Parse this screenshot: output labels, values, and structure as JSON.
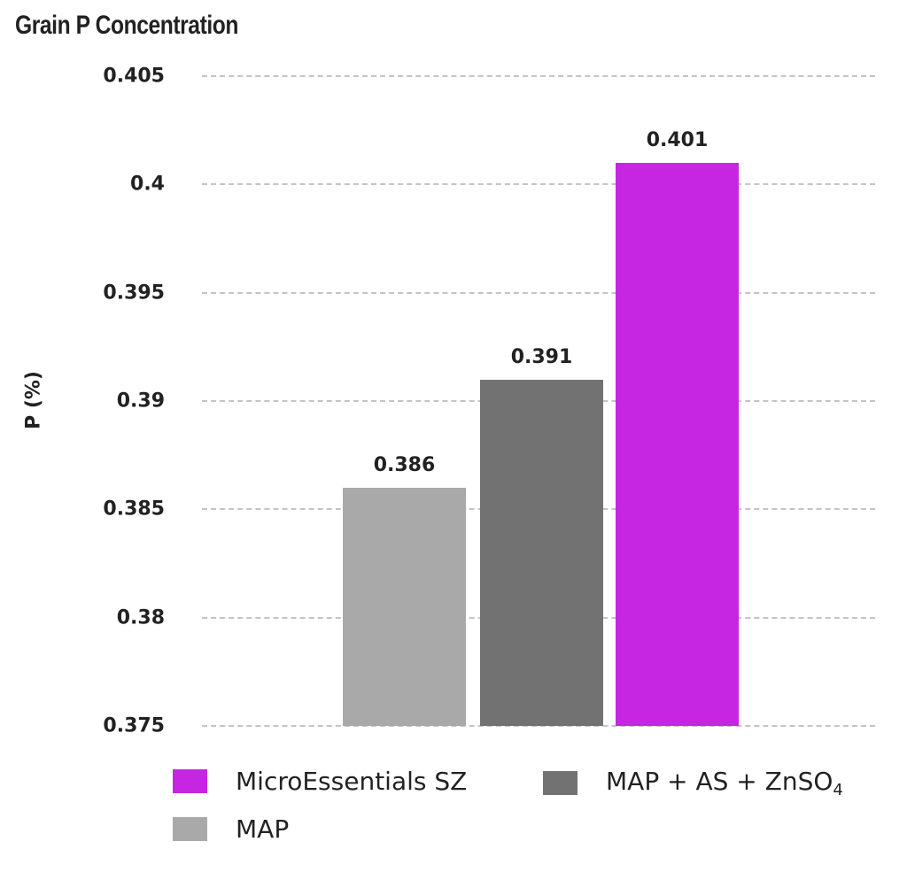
{
  "chart_data": {
    "type": "bar",
    "title": "Grain P Concentration",
    "xlabel": "",
    "ylabel": "P (%)",
    "ylim": [
      0.375,
      0.405
    ],
    "yticks": [
      "0.405",
      "0.4",
      "0.395",
      "0.39",
      "0.385",
      "0.38",
      "0.375"
    ],
    "grid": true,
    "legend_position": "bottom",
    "categories": [
      "MAP",
      "MAP + AS + ZnSO4",
      "MicroEssentials SZ"
    ],
    "values": [
      0.386,
      0.391,
      0.401
    ],
    "value_labels": [
      "0.386",
      "0.391",
      "0.401"
    ],
    "colors": [
      "#a9a9a9",
      "#727272",
      "#c626e2"
    ],
    "legend": [
      {
        "label": "MicroEssentials SZ",
        "color": "#c626e2"
      },
      {
        "label_main": "MAP + AS + ZnSO",
        "label_sub": "4",
        "color": "#727272"
      },
      {
        "label": "MAP",
        "color": "#a9a9a9"
      }
    ]
  }
}
